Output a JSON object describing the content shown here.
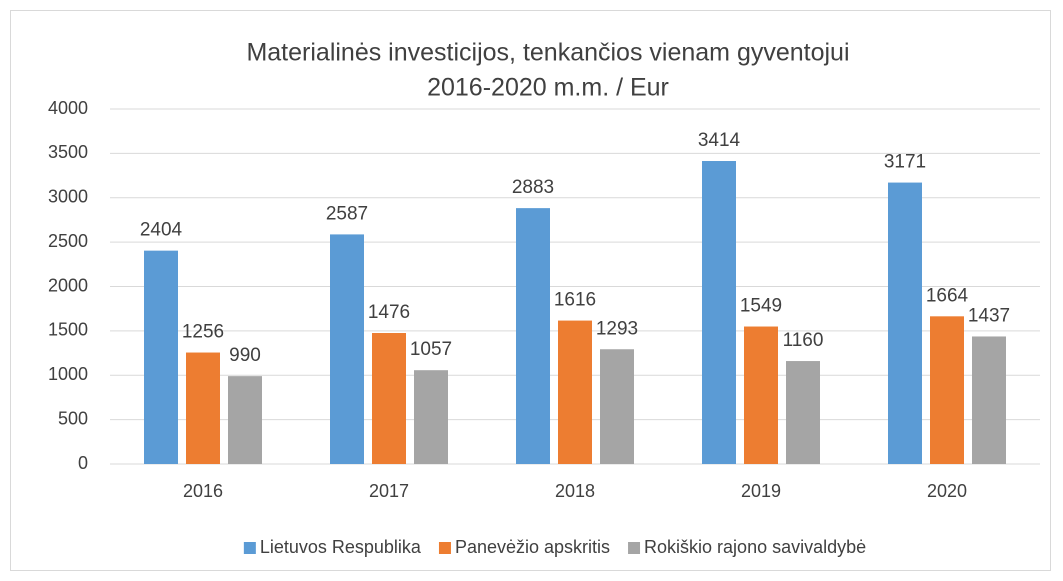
{
  "chart_data": {
    "type": "bar",
    "title": [
      "Materialinės investicijos, tenkančios vienam gyventojui",
      "2016-2020 m.m. / Eur"
    ],
    "categories": [
      "2016",
      "2017",
      "2018",
      "2019",
      "2020"
    ],
    "series": [
      {
        "name": "Lietuvos Respublika",
        "color": "#5b9bd5",
        "values": [
          2404,
          2587,
          2883,
          3414,
          3171
        ]
      },
      {
        "name": "Panevėžio apskritis",
        "color": "#ed7d31",
        "values": [
          1256,
          1476,
          1616,
          1549,
          1664
        ]
      },
      {
        "name": "Rokiškio rajono savivaldybė",
        "color": "#a5a5a5",
        "values": [
          990,
          1057,
          1293,
          1160,
          1437
        ]
      }
    ],
    "ylim": [
      0,
      4000
    ],
    "yticks": [
      0,
      500,
      1000,
      1500,
      2000,
      2500,
      3000,
      3500,
      4000
    ],
    "grid": true,
    "legend": "bottom"
  }
}
